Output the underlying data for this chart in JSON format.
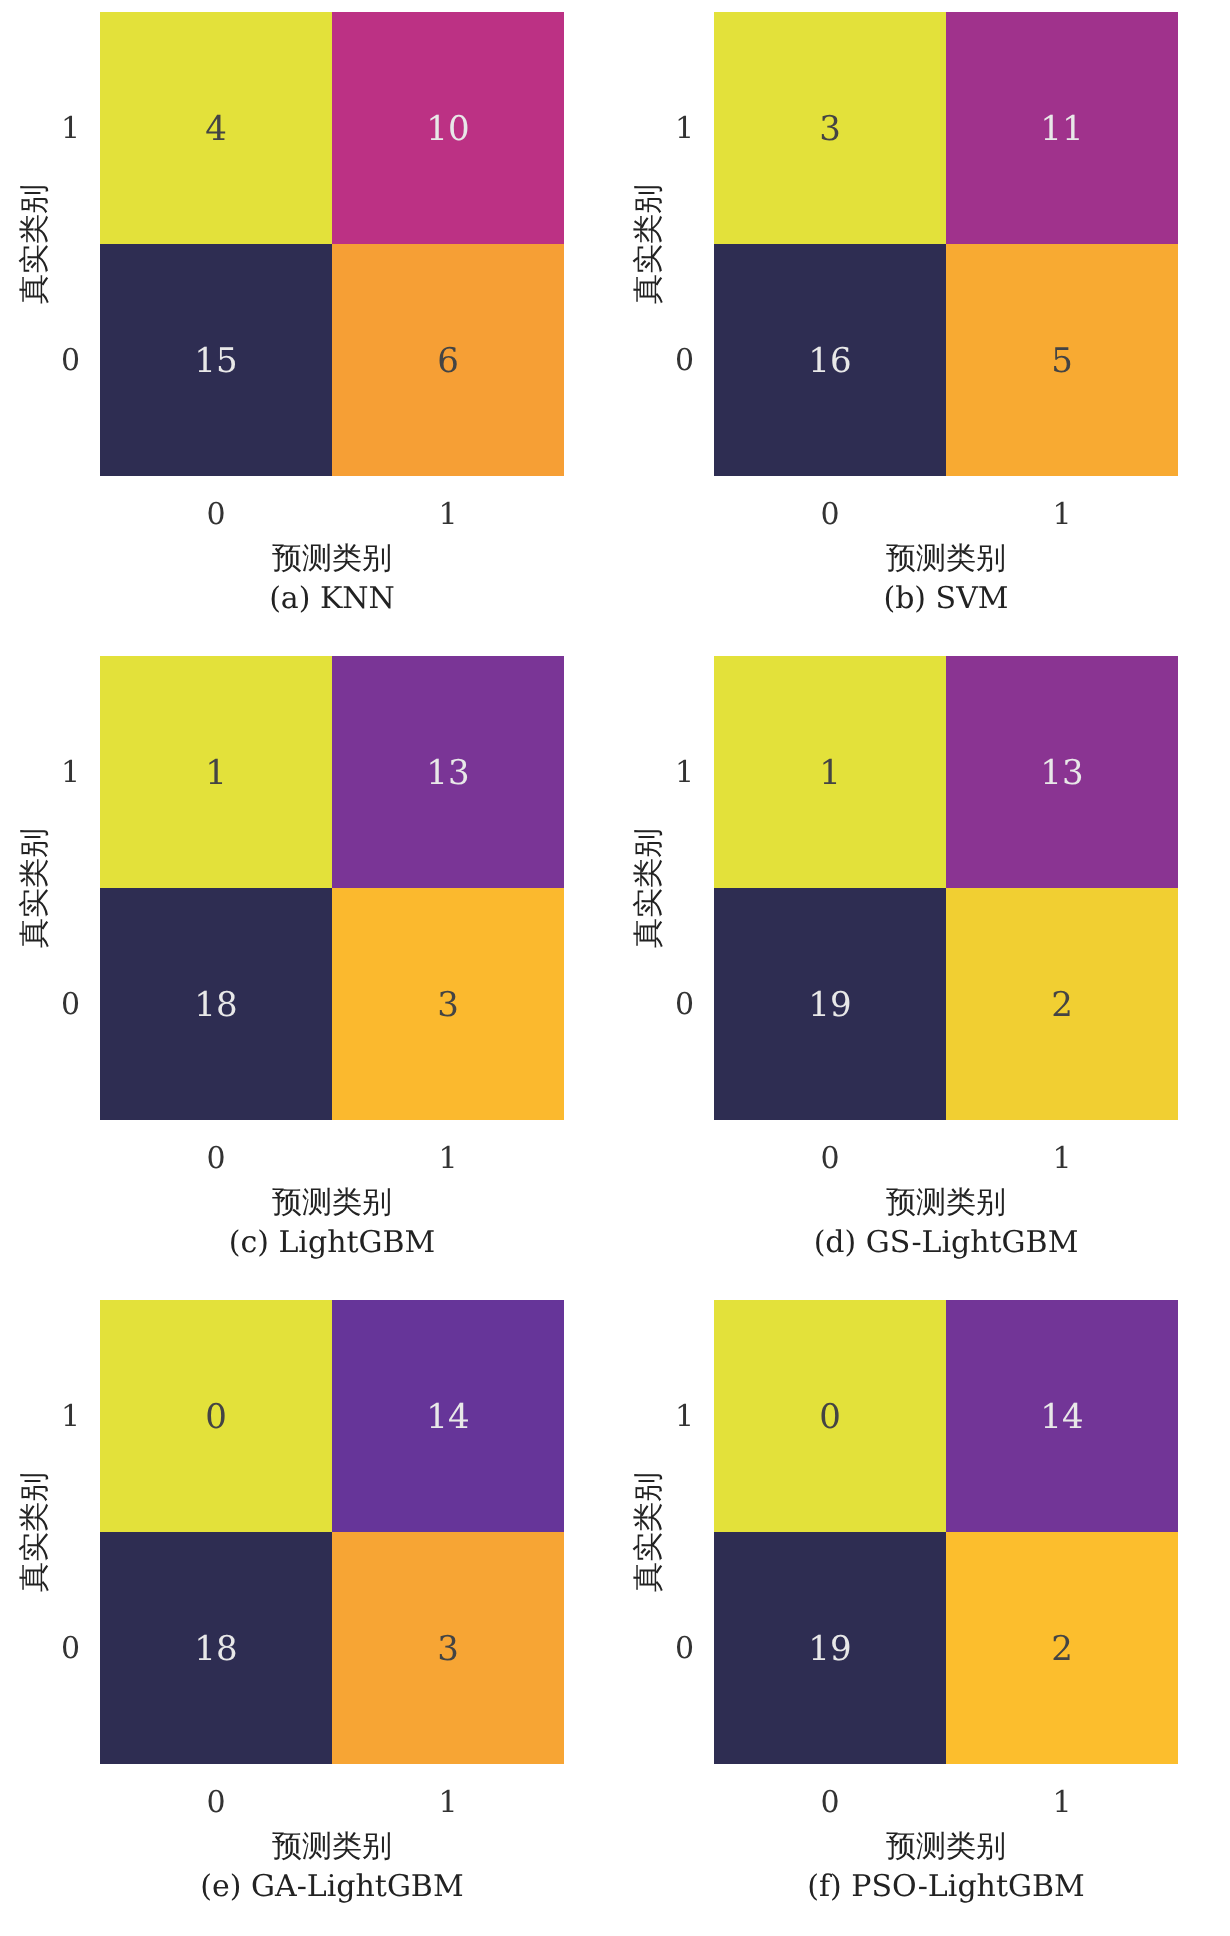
{
  "chart_data": [
    {
      "type": "heatmap",
      "title": "(a) KNN",
      "xlabel": "预测类别",
      "ylabel": "真实类别",
      "categories": [
        "0",
        "1"
      ],
      "y_categories": [
        "1",
        "0"
      ],
      "cells": [
        [
          4,
          10
        ],
        [
          15,
          6
        ]
      ],
      "data_labels": true
    },
    {
      "type": "heatmap",
      "title": "(b) SVM",
      "xlabel": "预测类别",
      "ylabel": "真实类别",
      "categories": [
        "0",
        "1"
      ],
      "y_categories": [
        "1",
        "0"
      ],
      "cells": [
        [
          3,
          11
        ],
        [
          16,
          5
        ]
      ],
      "data_labels": true
    },
    {
      "type": "heatmap",
      "title": "(c) LightGBM",
      "xlabel": "预测类别",
      "ylabel": "真实类别",
      "categories": [
        "0",
        "1"
      ],
      "y_categories": [
        "1",
        "0"
      ],
      "cells": [
        [
          1,
          13
        ],
        [
          18,
          3
        ]
      ],
      "data_labels": true
    },
    {
      "type": "heatmap",
      "title": "(d) GS-LightGBM",
      "xlabel": "预测类别",
      "ylabel": "真实类别",
      "categories": [
        "0",
        "1"
      ],
      "y_categories": [
        "1",
        "0"
      ],
      "cells": [
        [
          1,
          13
        ],
        [
          19,
          2
        ]
      ],
      "data_labels": true
    },
    {
      "type": "heatmap",
      "title": "(e) GA-LightGBM",
      "xlabel": "预测类别",
      "ylabel": "真实类别",
      "categories": [
        "0",
        "1"
      ],
      "y_categories": [
        "1",
        "0"
      ],
      "cells": [
        [
          0,
          14
        ],
        [
          18,
          3
        ]
      ],
      "data_labels": true
    },
    {
      "type": "heatmap",
      "title": "(f) PSO-LightGBM",
      "xlabel": "预测类别",
      "ylabel": "真实类别",
      "categories": [
        "0",
        "1"
      ],
      "y_categories": [
        "1",
        "0"
      ],
      "cells": [
        [
          0,
          14
        ],
        [
          19,
          2
        ]
      ],
      "data_labels": true
    }
  ]
}
